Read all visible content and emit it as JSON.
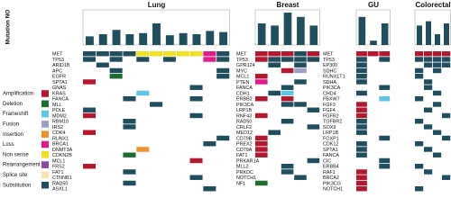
{
  "y_axis_label": "Mutation NO",
  "legend": [
    {
      "label": "Amplification",
      "color": "#b5172f"
    },
    {
      "label": "Deletion",
      "color": "#1b6e2f"
    },
    {
      "label": "Frameshift",
      "color": "#5bc8e8"
    },
    {
      "label": "Fusion",
      "color": "#9aa0c8"
    },
    {
      "label": "Insertion",
      "color": "#f0922a"
    },
    {
      "label": "Loss",
      "color": "#e6198a"
    },
    {
      "label": "Non sense",
      "color": "#f2e01e"
    },
    {
      "label": "Rearrangement",
      "color": "#8a4a9e"
    },
    {
      "label": "Splice site",
      "color": "#f4e4b0"
    },
    {
      "label": "Substitution",
      "color": "#1f4e5f"
    }
  ],
  "panels": [
    {
      "title": "Lung",
      "mutation_counts": [
        8,
        10,
        14,
        10,
        11,
        20,
        9,
        11,
        10,
        13,
        12
      ],
      "genes": [
        "MET",
        "TP53",
        "ARID1B",
        "APC",
        "EGFR",
        "SPTA1",
        "GNAS",
        "KRAS",
        "FANCA",
        "MLL",
        "POLE",
        "MDM2",
        "RBM10",
        "IRS2",
        "CDK4",
        "RUNX1",
        "BRCA1",
        "DNMT3A",
        "CDKN2B",
        "MCL1",
        "FRS2",
        "FAT1",
        "CTNNB1",
        "RAD50",
        "ASXL1"
      ],
      "cells": [
        [
          "Substitution",
          "Substitution",
          "Substitution",
          "Substitution",
          "Non sense",
          "Non sense",
          "Non sense",
          "Non sense",
          "Non sense",
          "Loss",
          "Substitution"
        ],
        [
          "Substitution",
          null,
          "Substitution",
          null,
          "Substitution",
          null,
          "Substitution",
          null,
          null,
          "Loss",
          "Substitution"
        ],
        [
          null,
          "Substitution",
          null,
          null,
          null,
          null,
          null,
          null,
          null,
          null,
          null
        ],
        [
          null,
          null,
          "Substitution",
          null,
          null,
          null,
          null,
          null,
          null,
          null,
          "Substitution"
        ],
        [
          null,
          null,
          "Deletion",
          null,
          null,
          null,
          null,
          null,
          null,
          null,
          "Substitution"
        ],
        [
          "Amplification",
          null,
          null,
          null,
          null,
          null,
          null,
          null,
          null,
          null,
          null
        ],
        [
          null,
          null,
          null,
          null,
          null,
          null,
          null,
          null,
          "Substitution",
          null,
          null
        ],
        [
          null,
          null,
          null,
          null,
          "Frameshift",
          null,
          null,
          null,
          null,
          null,
          null
        ],
        [
          null,
          null,
          null,
          "Substitution",
          null,
          null,
          null,
          null,
          "Substitution",
          null,
          null
        ],
        [
          null,
          null,
          null,
          null,
          null,
          "Substitution",
          null,
          null,
          null,
          null,
          null
        ],
        [
          "Substitution",
          null,
          null,
          null,
          null,
          null,
          null,
          null,
          null,
          null,
          null
        ],
        [
          "Amplification",
          null,
          null,
          null,
          null,
          null,
          null,
          null,
          "Substitution",
          null,
          null
        ],
        [
          null,
          null,
          null,
          "Substitution",
          null,
          null,
          null,
          null,
          null,
          null,
          null
        ],
        [
          null,
          null,
          null,
          "Substitution",
          null,
          null,
          null,
          null,
          null,
          null,
          null
        ],
        [
          "Amplification",
          null,
          null,
          null,
          null,
          null,
          null,
          null,
          null,
          null,
          null
        ],
        [
          null,
          null,
          null,
          null,
          null,
          null,
          null,
          null,
          null,
          null,
          "Substitution"
        ],
        [
          null,
          null,
          null,
          null,
          null,
          null,
          null,
          null,
          null,
          "Substitution",
          null
        ],
        [
          null,
          null,
          null,
          null,
          "Insertion",
          null,
          null,
          null,
          null,
          null,
          null
        ],
        [
          null,
          null,
          null,
          "Deletion",
          null,
          null,
          null,
          null,
          null,
          null,
          null
        ],
        [
          null,
          null,
          null,
          null,
          null,
          null,
          null,
          null,
          "Amplification",
          null,
          null
        ],
        [
          "Amplification",
          null,
          null,
          null,
          null,
          null,
          null,
          null,
          null,
          null,
          null
        ],
        [
          null,
          null,
          null,
          "Substitution",
          null,
          null,
          null,
          null,
          null,
          null,
          null
        ],
        [
          null,
          null,
          null,
          null,
          null,
          null,
          null,
          null,
          "Substitution",
          null,
          null
        ],
        [
          null,
          null,
          null,
          "Substitution",
          null,
          null,
          null,
          null,
          null,
          null,
          null
        ],
        [
          null,
          null,
          null,
          null,
          null,
          null,
          null,
          null,
          null,
          "Substitution",
          null
        ]
      ]
    },
    {
      "title": "Breast",
      "mutation_counts": [
        20,
        18,
        30,
        26,
        18
      ],
      "genes": [
        "MET",
        "TP53",
        "GPR124",
        "MYC",
        "MCL1",
        "PTEN",
        "FANCA",
        "CDH1",
        "ERBB2",
        "PIK3CA",
        "LRP1B",
        "RNF43",
        "RAD50",
        "CRLF2",
        "MED12",
        "CD79B",
        "PREX2",
        "CD79A",
        "FAT1",
        "PRKAR1A",
        "MLL2",
        "PRKDC",
        "NOTCH1",
        "NF1"
      ],
      "cells": [
        [
          "Amplification",
          "Amplification",
          "Amplification",
          "Substitution",
          "Amplification"
        ],
        [
          "Amplification",
          "Substitution",
          "Substitution",
          "Substitution",
          "Substitution"
        ],
        [
          null,
          "Substitution",
          null,
          "Substitution",
          null
        ],
        [
          null,
          null,
          "Amplification",
          "Fusion",
          null
        ],
        [
          "Amplification",
          null,
          null,
          null,
          null
        ],
        [
          "Loss",
          null,
          null,
          "Substitution",
          null
        ],
        [
          null,
          null,
          "Substitution",
          null,
          null
        ],
        [
          null,
          "Substitution",
          "Frameshift",
          null,
          null
        ],
        [
          "Amplification",
          null,
          "Amplification",
          null,
          null
        ],
        [
          null,
          null,
          "Substitution",
          "Substitution",
          null
        ],
        [
          null,
          null,
          null,
          null,
          "Substitution"
        ],
        [
          "Amplification",
          null,
          null,
          null,
          null
        ],
        [
          null,
          null,
          "Substitution",
          null,
          null
        ],
        [
          null,
          null,
          null,
          null,
          "Substitution"
        ],
        [
          null,
          "Substitution",
          null,
          null,
          null
        ],
        [
          "Amplification",
          null,
          null,
          null,
          null
        ],
        [
          "Amplification",
          null,
          null,
          null,
          null
        ],
        [
          "Amplification",
          null,
          null,
          null,
          null
        ],
        [
          "Amplification",
          null,
          null,
          null,
          null
        ],
        [
          null,
          null,
          null,
          null,
          "Substitution"
        ],
        [
          null,
          null,
          "Substitution",
          null,
          null
        ],
        [
          null,
          null,
          "Substitution",
          null,
          null
        ],
        [
          null,
          null,
          null,
          "Substitution",
          null
        ],
        [
          "Deletion",
          null,
          null,
          null,
          null
        ]
      ]
    },
    {
      "title": "GU",
      "mutation_counts": [
        26,
        4,
        20
      ],
      "genes": [
        "MET",
        "TP53",
        "EP300",
        "SDHC",
        "RUNX1T1",
        "SDHA",
        "PIK3CA",
        "CHD4",
        "FBXW7",
        "FGF3",
        "FGF4",
        "FGFR2",
        "TGFBR2",
        "SOX9",
        "LRP1B",
        "FOXP1",
        "CDK12",
        "SPTA1",
        "FANCA",
        "CIC",
        "ERBB4",
        "RAF1",
        "BRCA2",
        "PIK3CG",
        "NOTCH1"
      ],
      "cells": [
        [
          "Amplification",
          "Amplification",
          "Amplification"
        ],
        [
          "Substitution",
          null,
          "Substitution"
        ],
        [
          "Substitution",
          null,
          null
        ],
        [
          "Substitution",
          null,
          null
        ],
        [
          "Substitution",
          null,
          null
        ],
        [
          "Substitution",
          null,
          null
        ],
        [
          null,
          null,
          "Substitution"
        ],
        [
          "Substitution",
          null,
          null
        ],
        [
          null,
          null,
          "Frameshift"
        ],
        [
          "Amplification",
          null,
          null
        ],
        [
          "Amplification",
          null,
          null
        ],
        [
          "Amplification",
          null,
          null
        ],
        [
          "Substitution",
          null,
          null
        ],
        [
          "Substitution",
          null,
          null
        ],
        [
          "Substitution",
          null,
          null
        ],
        [
          null,
          null,
          "Substitution"
        ],
        [
          "Substitution",
          null,
          null
        ],
        [
          "Substitution",
          null,
          null
        ],
        [
          "Substitution",
          null,
          null
        ],
        [
          null,
          null,
          "Substitution"
        ],
        [
          null,
          null,
          "Substitution"
        ],
        [
          "Amplification",
          null,
          null
        ],
        [
          "Amplification",
          null,
          null
        ],
        [
          "Amplification",
          null,
          null
        ],
        [
          "Amplification",
          null,
          null
        ]
      ]
    },
    {
      "title": "Colorectal",
      "mutation_counts": [
        18,
        22,
        10,
        20
      ],
      "cells": [
        [
          "Amplification",
          "Amplification",
          "Amplification",
          "Amplification"
        ],
        [
          "Substitution",
          "Substitution",
          "Substitution",
          "Substitution"
        ],
        [
          null,
          "Substitution",
          "Substitution",
          "Substitution"
        ],
        [
          "Substitution",
          null,
          "Substitution",
          null
        ],
        [
          "Substitution",
          null,
          null,
          null
        ],
        [
          null,
          "Substitution",
          null,
          null
        ],
        [
          null,
          "Substitution",
          null,
          null
        ],
        [
          null,
          null,
          "Substitution",
          null
        ],
        [
          "Substitution",
          null,
          null,
          null
        ],
        [
          null,
          null,
          "Substitution",
          null
        ],
        [
          null,
          "Substitution",
          null,
          null
        ],
        [
          null,
          null,
          null,
          "Substitution"
        ],
        [
          "Substitution",
          null,
          null,
          null
        ],
        [
          null,
          "Substitution",
          null,
          null
        ],
        [
          null,
          null,
          "Substitution",
          null
        ],
        [
          null,
          null,
          null,
          "Substitution"
        ],
        [
          "Substitution",
          null,
          null,
          null
        ],
        [
          null,
          "Substitution",
          null,
          null
        ],
        [
          null,
          null,
          "Substitution",
          null
        ],
        [
          null,
          null,
          null,
          null
        ],
        [
          "Substitution",
          null,
          null,
          null
        ],
        [
          null,
          "Substitution",
          null,
          null
        ],
        [
          null,
          null,
          null,
          "Substitution"
        ],
        [
          null,
          null,
          null,
          null
        ],
        [
          "Substitution",
          null,
          null,
          null
        ]
      ]
    }
  ]
}
